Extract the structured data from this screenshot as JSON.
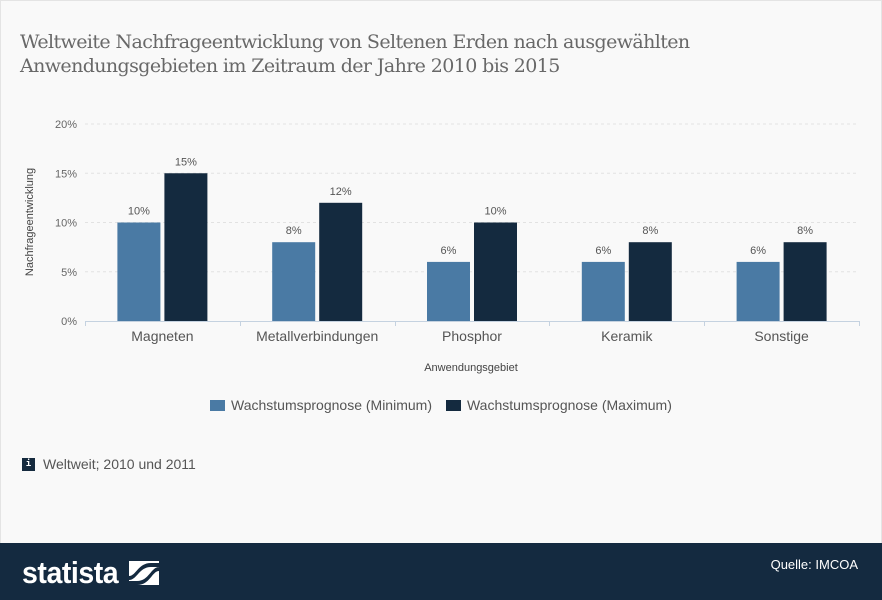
{
  "title": "Weltweite Nachfrageentwicklung von Seltenen Erden nach ausgewählten Anwendungsgebieten im Zeitraum der Jahre 2010 bis 2015",
  "colors": {
    "minimum": "#4a7aa4",
    "maximum": "#142a3f",
    "grid": "#e2e2e2",
    "axis": "#c5d2e0"
  },
  "note": {
    "icon": "info-icon",
    "text": "Weltweit; 2010 und 2011"
  },
  "footer": {
    "brand": "statista",
    "logo_icon": "statista-logo-icon",
    "source": "Quelle: IMCOA"
  },
  "chart_data": {
    "type": "bar",
    "title": "Weltweite Nachfrageentwicklung von Seltenen Erden nach ausgewählten Anwendungsgebieten im Zeitraum der Jahre 2010 bis 2015",
    "xlabel": "Anwendungsgebiet",
    "ylabel": "Nachfrageentwicklung",
    "categories": [
      "Magneten",
      "Metallverbindungen",
      "Phosphor",
      "Keramik",
      "Sonstige"
    ],
    "series": [
      {
        "name": "Wachstumsprognose (Minimum)",
        "values": [
          10,
          8,
          6,
          6,
          6
        ],
        "labels": [
          "10%",
          "8%",
          "6%",
          "6%",
          "6%"
        ]
      },
      {
        "name": "Wachstumsprognose (Maximum)",
        "values": [
          15,
          12,
          10,
          8,
          8
        ],
        "labels": [
          "15%",
          "12%",
          "10%",
          "8%",
          "8%"
        ]
      }
    ],
    "yticks": [
      0,
      5,
      10,
      15,
      20
    ],
    "ytick_labels": [
      "0%",
      "5%",
      "10%",
      "15%",
      "20%"
    ],
    "ylim": [
      0,
      20
    ],
    "grid": true,
    "legend": "bottom-center"
  }
}
